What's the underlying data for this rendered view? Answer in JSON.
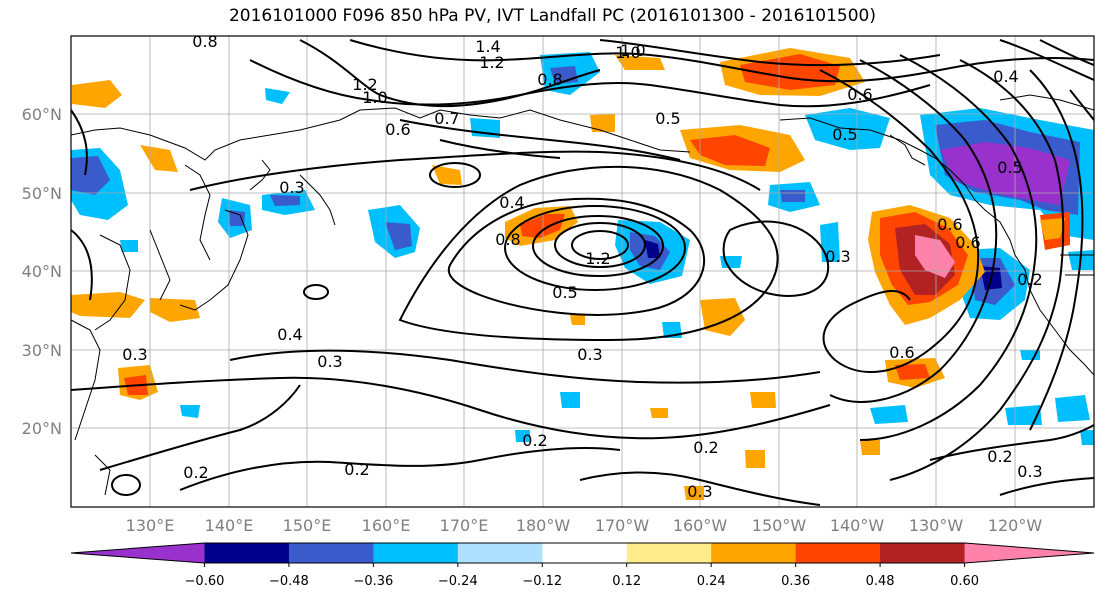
{
  "title": "2016101000 F096 850 hPa PV, IVT Landfall PC (2016101300 - 2016101500)",
  "map": {
    "lat_labels": [
      "60°N",
      "50°N",
      "40°N",
      "30°N",
      "20°N"
    ],
    "lon_labels": [
      "130°E",
      "140°E",
      "150°E",
      "160°E",
      "170°E",
      "180°W",
      "170°W",
      "160°W",
      "150°W",
      "140°W",
      "130°W",
      "120°W"
    ],
    "contour_labels": [
      "0.8",
      "1.4",
      "1.2",
      "1.0",
      "0.8",
      "0.4",
      "0.7",
      "0.6",
      "0.5",
      "0.5",
      "1.2",
      "1.0",
      "0.6",
      "0.5",
      "0.3",
      "0.4",
      "1.2",
      "0.8",
      "0.6",
      "0.5",
      "0.3",
      "0.6",
      "0.2",
      "0.4",
      "0.3",
      "0.3",
      "0.6",
      "0.3",
      "0.2",
      "0.2",
      "0.2",
      "0.2",
      "0.3",
      "0.2",
      "0.3",
      "1.0"
    ]
  },
  "colorbar": {
    "tick_labels": [
      "−0.60",
      "−0.48",
      "−0.36",
      "−0.24",
      "−0.12",
      "0.12",
      "0.24",
      "0.36",
      "0.48",
      "0.60"
    ],
    "colors": [
      "#9932cc",
      "#00008b",
      "#3a5bcc",
      "#00bfff",
      "#b0e0ff",
      "#ffffff",
      "#ffec8b",
      "#ffa500",
      "#ff4500",
      "#b22222",
      "#ff82ab"
    ]
  }
}
